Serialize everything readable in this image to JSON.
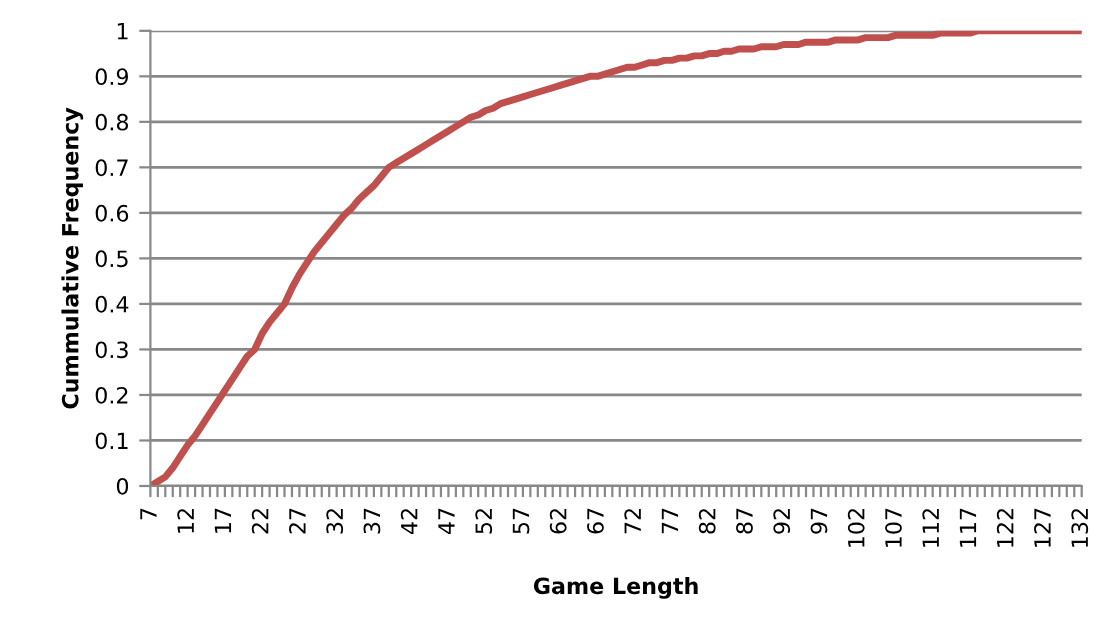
{
  "chart_data": {
    "type": "line",
    "xlabel": "Game Length",
    "ylabel": "Cummulative Frequency",
    "categories": [
      "7",
      null,
      null,
      null,
      null,
      "12",
      null,
      null,
      null,
      null,
      "17",
      null,
      null,
      null,
      null,
      "22",
      null,
      null,
      null,
      null,
      "27",
      null,
      null,
      null,
      null,
      "32",
      null,
      null,
      null,
      null,
      "37",
      null,
      null,
      null,
      null,
      "42",
      null,
      null,
      null,
      null,
      "47",
      null,
      null,
      null,
      null,
      "52",
      null,
      null,
      null,
      null,
      "57",
      null,
      null,
      null,
      null,
      "62",
      null,
      null,
      null,
      null,
      "67",
      null,
      null,
      null,
      null,
      "72",
      null,
      null,
      null,
      null,
      "77",
      null,
      null,
      null,
      null,
      "82",
      null,
      null,
      null,
      null,
      "87",
      null,
      null,
      null,
      null,
      "92",
      null,
      null,
      null,
      null,
      "97",
      null,
      null,
      null,
      null,
      "102",
      null,
      null,
      null,
      null,
      "107",
      null,
      null,
      null,
      null,
      "112",
      null,
      null,
      null,
      null,
      "117",
      null,
      null,
      null,
      null,
      "122",
      null,
      null,
      null,
      null,
      "127",
      null,
      null,
      null,
      null,
      "132"
    ],
    "series": [
      {
        "color": "#c0504d",
        "values": [
          0,
          0.01,
          0.02,
          0.04,
          0.065,
          0.09,
          0.11,
          0.135,
          0.16,
          0.185,
          0.21,
          0.235,
          0.26,
          0.285,
          0.3,
          0.335,
          0.36,
          0.38,
          0.4,
          0.435,
          0.465,
          0.49,
          0.515,
          0.535,
          0.555,
          0.575,
          0.595,
          0.61,
          0.63,
          0.645,
          0.66,
          0.68,
          0.7,
          0.71,
          0.72,
          0.73,
          0.74,
          0.75,
          0.76,
          0.77,
          0.78,
          0.79,
          0.8,
          0.81,
          0.815,
          0.825,
          0.83,
          0.84,
          0.845,
          0.85,
          0.855,
          0.86,
          0.865,
          0.87,
          0.875,
          0.88,
          0.885,
          0.89,
          0.895,
          0.9,
          0.9,
          0.905,
          0.91,
          0.915,
          0.92,
          0.92,
          0.925,
          0.93,
          0.93,
          0.935,
          0.935,
          0.94,
          0.94,
          0.945,
          0.945,
          0.95,
          0.95,
          0.955,
          0.955,
          0.96,
          0.96,
          0.96,
          0.965,
          0.965,
          0.965,
          0.97,
          0.97,
          0.97,
          0.975,
          0.975,
          0.975,
          0.975,
          0.98,
          0.98,
          0.98,
          0.98,
          0.985,
          0.985,
          0.985,
          0.985,
          0.99,
          0.99,
          0.99,
          0.99,
          0.99,
          0.99,
          0.995,
          0.995,
          0.995,
          0.995,
          0.995,
          1,
          1,
          1,
          1,
          1,
          1,
          1,
          1,
          1,
          1,
          1,
          1,
          1,
          1,
          1
        ]
      }
    ],
    "ylim": [
      0,
      1
    ],
    "yticks": [
      0,
      0.1,
      0.2,
      0.3,
      0.4,
      0.5,
      0.6,
      0.7,
      0.8,
      0.9,
      1
    ],
    "grid": "y",
    "marker": "none",
    "line_style": "solid"
  }
}
